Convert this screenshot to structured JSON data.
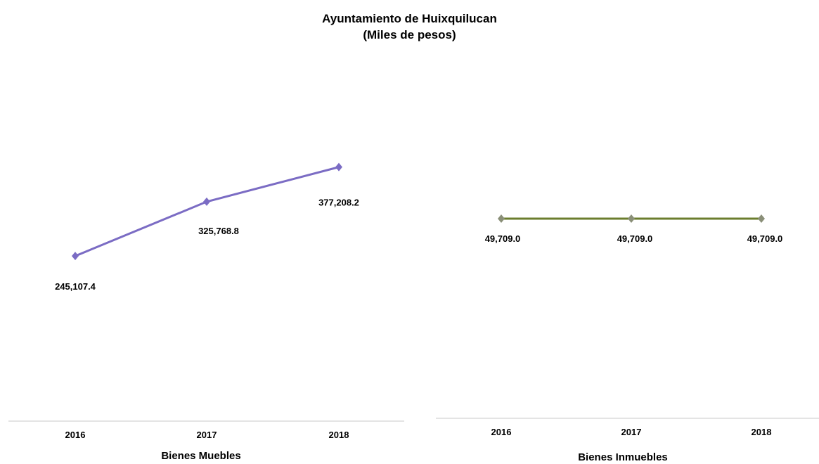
{
  "title": {
    "line1": "Ayuntamiento de Huixquilucan",
    "line2": "(Miles de pesos)"
  },
  "chart_data": [
    {
      "type": "line",
      "categories": [
        "2016",
        "2017",
        "2018"
      ],
      "xlabel": "Bienes Muebles",
      "ylabel": "",
      "ylim": [
        0,
        500000
      ],
      "grid": false,
      "series": [
        {
          "name": "",
          "values": [
            245107.4,
            325768.8,
            377208.2
          ],
          "color": "#7b6cc4"
        }
      ],
      "data_labels": [
        "245,107.4",
        "325,768.8",
        "377,208.2"
      ]
    },
    {
      "type": "line",
      "categories": [
        "2016",
        "2017",
        "2018"
      ],
      "xlabel": "Bienes Inmuebles",
      "ylabel": "",
      "grid": false,
      "series": [
        {
          "name": "",
          "values": [
            49709.0,
            49709.0,
            49709.0
          ],
          "color": "#6b7d2e"
        }
      ],
      "data_labels": [
        "49,709.0",
        "49,709.0",
        "49,709.0"
      ]
    }
  ]
}
